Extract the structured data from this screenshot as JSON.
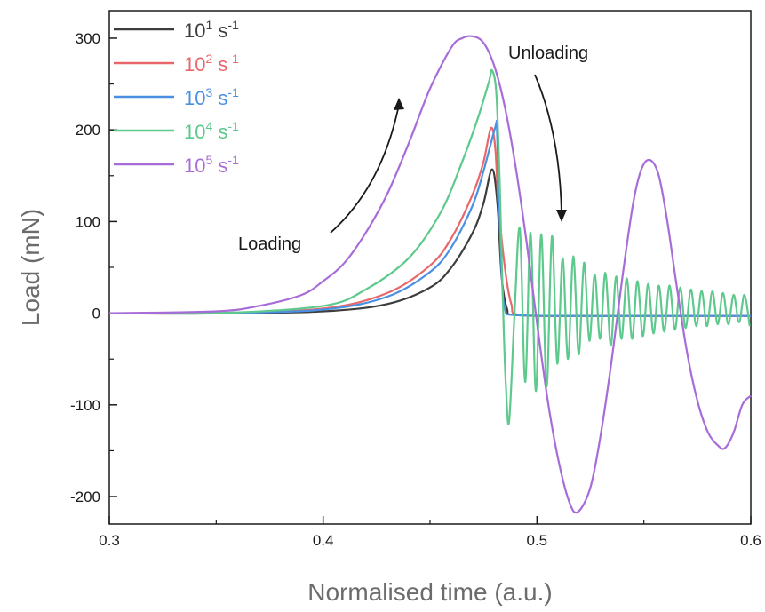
{
  "chart_data": {
    "type": "line",
    "title": "",
    "xlabel": "Normalised time (a.u.)",
    "ylabel": "Load (mN)",
    "xlim": [
      0.3,
      0.6
    ],
    "ylim": [
      -230,
      330
    ],
    "xticks": [
      0.3,
      0.4,
      0.5,
      0.6
    ],
    "xtick_labels": [
      "0.3",
      "0.4",
      "0.5",
      "0.6"
    ],
    "yticks": [
      -200,
      -100,
      0,
      100,
      200,
      300
    ],
    "ytick_labels": [
      "-200",
      "-100",
      "0",
      "100",
      "200",
      "300"
    ],
    "grid": false,
    "legend_position": "top-left",
    "annotations": [
      {
        "text": "Loading",
        "x": 0.405,
        "y": 75
      },
      {
        "text": "Unloading",
        "x": 0.532,
        "y": 285
      }
    ],
    "series": [
      {
        "name": "10¹ s⁻¹",
        "legend_base": "10",
        "legend_exp": "1",
        "legend_unit": "s",
        "legend_unit_exp": "-1",
        "color": "#3d3d3d",
        "x": [
          0.3,
          0.35,
          0.4,
          0.43,
          0.45,
          0.46,
          0.47,
          0.475,
          0.479,
          0.4815,
          0.4835,
          0.486,
          0.49,
          0.52,
          0.55,
          0.6
        ],
        "y": [
          0,
          0,
          2,
          10,
          28,
          50,
          88,
          120,
          157,
          120,
          40,
          5,
          -2,
          -3,
          -3,
          -3
        ]
      },
      {
        "name": "10² s⁻¹",
        "legend_base": "10",
        "legend_exp": "2",
        "legend_unit": "s",
        "legend_unit_exp": "-1",
        "color": "#e8676a",
        "x": [
          0.3,
          0.35,
          0.4,
          0.43,
          0.45,
          0.46,
          0.47,
          0.475,
          0.4785,
          0.4805,
          0.482,
          0.485,
          0.488,
          0.492,
          0.52,
          0.55,
          0.6
        ],
        "y": [
          0,
          0,
          5,
          22,
          52,
          82,
          130,
          165,
          202,
          180,
          120,
          50,
          10,
          -2,
          -3,
          -3,
          -3
        ]
      },
      {
        "name": "10³ s⁻¹",
        "legend_base": "10",
        "legend_exp": "3",
        "legend_unit": "s",
        "legend_unit_exp": "-1",
        "color": "#4a90e2",
        "x": [
          0.3,
          0.35,
          0.4,
          0.43,
          0.45,
          0.46,
          0.47,
          0.475,
          0.4805,
          0.4812,
          0.4818,
          0.4825,
          0.4835,
          0.485,
          0.49,
          0.52,
          0.55,
          0.6
        ],
        "y": [
          0,
          0,
          4,
          18,
          45,
          72,
          118,
          155,
          203,
          205,
          160,
          110,
          45,
          5,
          -2,
          -3,
          -3,
          -3
        ]
      },
      {
        "name": "10⁴ s⁻¹",
        "legend_base": "10",
        "legend_exp": "4",
        "legend_unit": "s",
        "legend_unit_exp": "-1",
        "color": "#5ec98c",
        "x": [
          0.3,
          0.35,
          0.4,
          0.42,
          0.44,
          0.455,
          0.465,
          0.472,
          0.4775,
          0.479,
          0.481,
          0.4825,
          0.4835,
          0.4845,
          0.4855,
          0.487,
          0.4895,
          0.492,
          0.4945,
          0.497,
          0.4995,
          0.502,
          0.5045,
          0.507,
          0.5095,
          0.512,
          0.5145,
          0.517,
          0.5195,
          0.522,
          0.5245,
          0.527,
          0.5295,
          0.532,
          0.5345,
          0.537,
          0.5395,
          0.542,
          0.5445,
          0.547,
          0.5495,
          0.552,
          0.5545,
          0.557,
          0.5595,
          0.562,
          0.5645,
          0.567,
          0.5695,
          0.572,
          0.5745,
          0.577,
          0.5795,
          0.582,
          0.5845,
          0.587,
          0.5895,
          0.592,
          0.5945,
          0.597,
          0.5995
        ],
        "y": [
          0,
          0,
          8,
          26,
          60,
          110,
          165,
          210,
          252,
          265,
          240,
          150,
          60,
          -20,
          -80,
          -118,
          0,
          92,
          -75,
          88,
          -85,
          86,
          -80,
          84,
          -55,
          60,
          -50,
          62,
          -45,
          55,
          -30,
          42,
          -28,
          44,
          -35,
          40,
          -28,
          38,
          -28,
          35,
          -25,
          32,
          -22,
          30,
          -20,
          30,
          -18,
          28,
          -16,
          26,
          -14,
          24,
          -14,
          24,
          -12,
          22,
          -12,
          20,
          -10,
          20,
          -14
        ]
      },
      {
        "name": "10⁵ s⁻¹",
        "legend_base": "10",
        "legend_exp": "5",
        "legend_unit": "s",
        "legend_unit_exp": "-1",
        "color": "#a86cd8",
        "x": [
          0.3,
          0.35,
          0.37,
          0.39,
          0.4,
          0.41,
          0.42,
          0.43,
          0.44,
          0.45,
          0.46,
          0.465,
          0.47,
          0.475,
          0.48,
          0.485,
          0.49,
          0.495,
          0.5,
          0.505,
          0.51,
          0.515,
          0.519,
          0.525,
          0.53,
          0.535,
          0.54,
          0.545,
          0.549,
          0.553,
          0.557,
          0.561,
          0.565,
          0.57,
          0.575,
          0.58,
          0.585,
          0.588,
          0.592,
          0.596,
          0.6
        ],
        "y": [
          0,
          2,
          8,
          20,
          35,
          55,
          88,
          130,
          185,
          245,
          290,
          300,
          302,
          295,
          270,
          225,
          160,
          80,
          -10,
          -95,
          -160,
          -205,
          -217,
          -190,
          -130,
          -50,
          40,
          120,
          158,
          167,
          150,
          100,
          35,
          -40,
          -95,
          -130,
          -145,
          -147,
          -130,
          -100,
          -90
        ]
      }
    ]
  }
}
